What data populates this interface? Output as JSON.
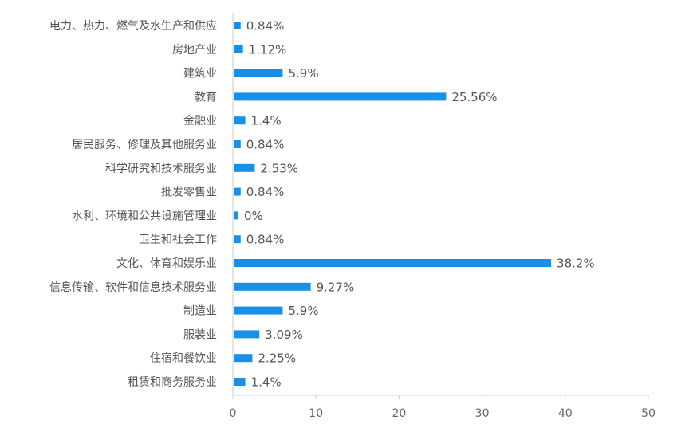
{
  "chart_data": {
    "type": "bar",
    "orientation": "horizontal",
    "categories": [
      "电力、热力、燃气及水生产和供应",
      "房地产业",
      "建筑业",
      "教育",
      "金融业",
      "居民服务、修理及其他服务业",
      "科学研究和技术服务业",
      "批发零售业",
      "水利、环境和公共设施管理业",
      "卫生和社会工作",
      "文化、体育和娱乐业",
      "信息传输、软件和信息技术服务业",
      "制造业",
      "服装业",
      "住宿和餐饮业",
      "租赁和商务服务业"
    ],
    "values": [
      0.84,
      1.12,
      5.9,
      25.56,
      1.4,
      0.84,
      2.53,
      0.84,
      0,
      0.84,
      38.2,
      9.27,
      5.9,
      3.09,
      2.25,
      1.4
    ],
    "value_labels": [
      "0.84%",
      "1.12%",
      "5.9%",
      "25.56%",
      "1.4%",
      "0.84%",
      "2.53%",
      "0.84%",
      "0%",
      "0.84%",
      "38.2%",
      "9.27%",
      "5.9%",
      "3.09%",
      "2.25%",
      "1.4%"
    ],
    "x_ticks": [
      "0",
      "10",
      "20",
      "30",
      "40",
      "50"
    ],
    "xlim": [
      0,
      50
    ],
    "bar_color": "#1890e8",
    "grid": false,
    "legend": "none",
    "title": "",
    "xlabel": "",
    "ylabel": ""
  }
}
